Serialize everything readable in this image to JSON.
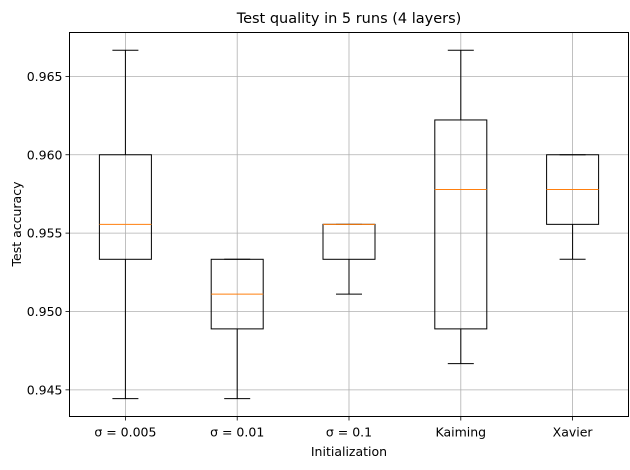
{
  "chart_data": {
    "type": "box",
    "title": "Test quality in 5 runs  (4 layers)",
    "xlabel": "Initialization",
    "ylabel": "Test accuracy",
    "categories": [
      "σ = 0.005",
      "σ = 0.01",
      "σ = 0.1",
      "Kaiming",
      "Xavier"
    ],
    "boxes": [
      {
        "whisker_low": 0.94444,
        "q1": 0.95333,
        "median": 0.95556,
        "q3": 0.96,
        "whisker_high": 0.96667
      },
      {
        "whisker_low": 0.94444,
        "q1": 0.94889,
        "median": 0.95111,
        "q3": 0.95333,
        "whisker_high": 0.95333
      },
      {
        "whisker_low": 0.95111,
        "q1": 0.95333,
        "median": 0.95556,
        "q3": 0.95556,
        "whisker_high": 0.95556
      },
      {
        "whisker_low": 0.94667,
        "q1": 0.94889,
        "median": 0.95778,
        "q3": 0.96222,
        "whisker_high": 0.96667
      },
      {
        "whisker_low": 0.95333,
        "q1": 0.95556,
        "median": 0.95778,
        "q3": 0.96,
        "whisker_high": 0.96
      }
    ],
    "yticks": [
      "0.945",
      "0.950",
      "0.955",
      "0.960",
      "0.965"
    ],
    "ylim": [
      0.9433,
      0.9678
    ],
    "grid": true,
    "colors": {
      "box": "#000000",
      "median": "#ff7f0e",
      "grid": "#b0b0b0"
    }
  }
}
